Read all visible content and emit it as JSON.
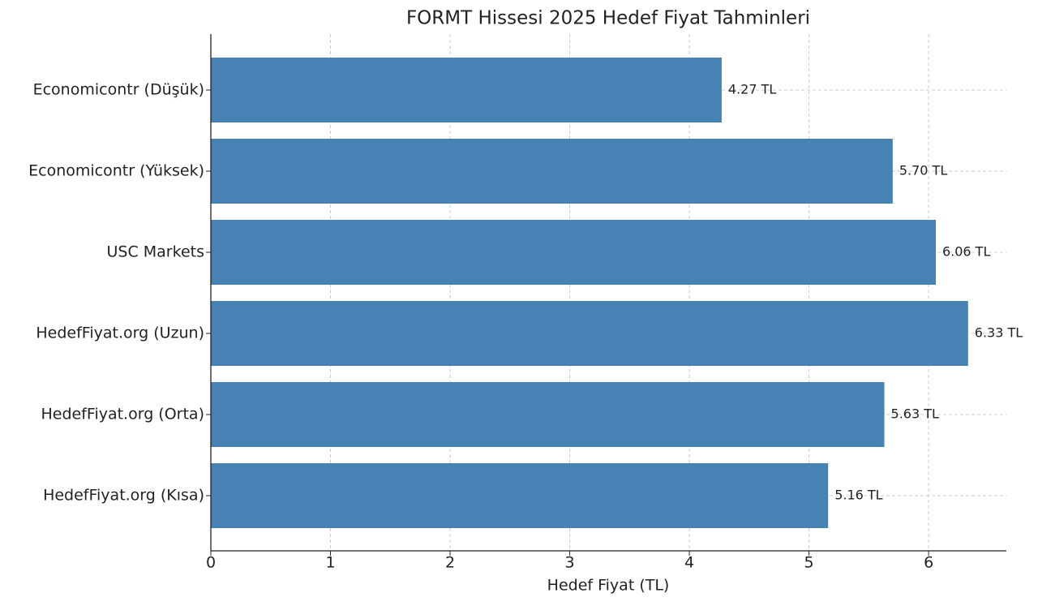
{
  "chart_data": {
    "type": "barh",
    "title": "FORMT Hissesi 2025 Hedef Fiyat Tahminleri",
    "x_label": "Hedef Fiyat (TL)",
    "categories": [
      "Economicontr (Düşük)",
      "Economicontr (Yüksek)",
      "USC Markets",
      "HedefFiyat.org (Uzun)",
      "HedefFiyat.org (Orta)",
      "HedefFiyat.org (Kısa)"
    ],
    "values": [
      4.27,
      5.7,
      6.06,
      6.33,
      5.63,
      5.16
    ],
    "value_labels": [
      "4.27 TL",
      "5.70 TL",
      "6.06 TL",
      "6.33 TL",
      "5.63 TL",
      "5.16 TL"
    ],
    "color": "#4682b4",
    "xlim": [
      0,
      6.65
    ],
    "xticks": [
      0,
      1,
      2,
      3,
      4,
      5,
      6
    ],
    "grid": true
  }
}
